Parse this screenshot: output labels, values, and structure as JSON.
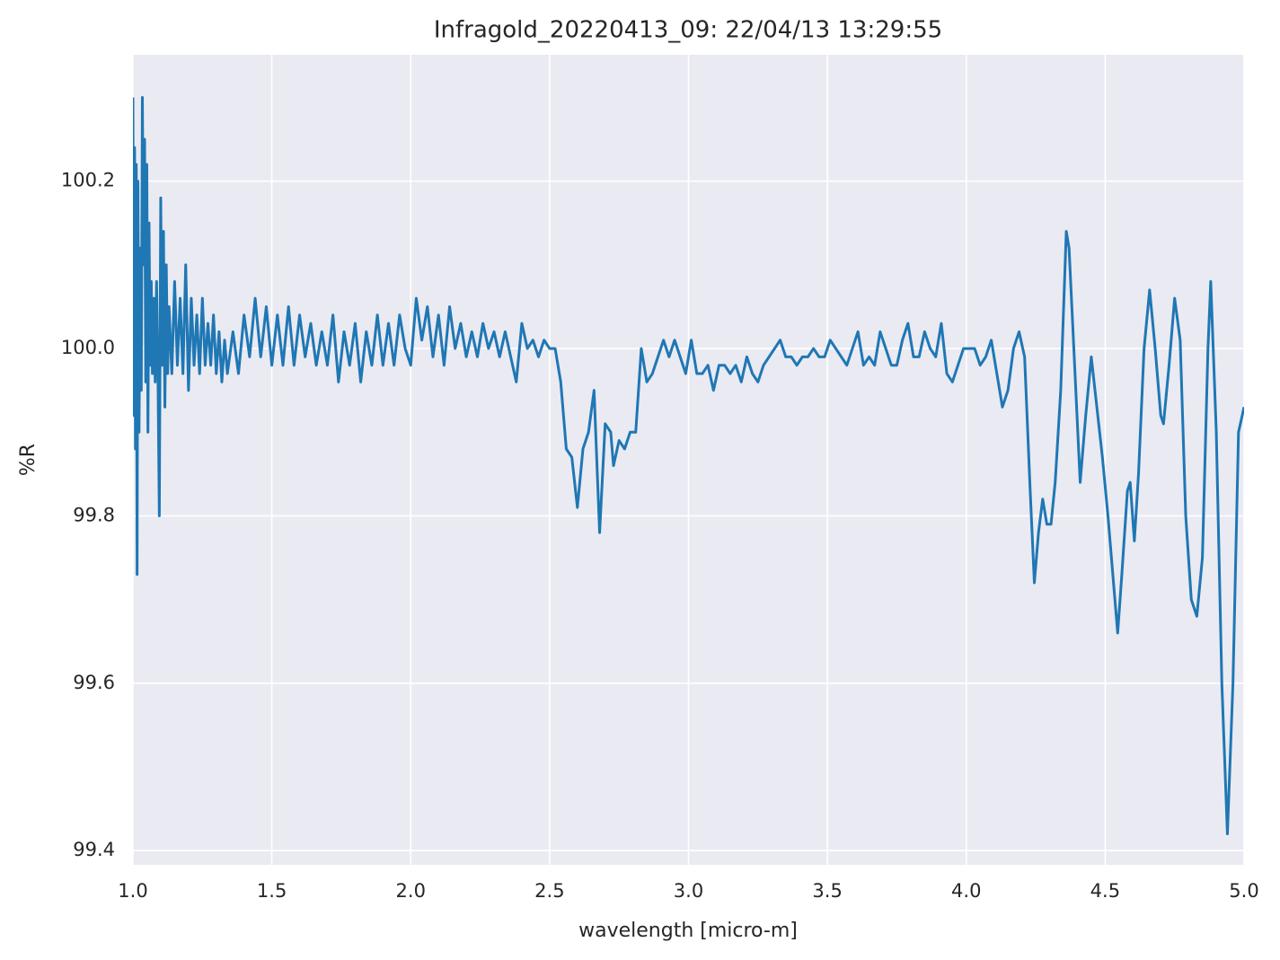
{
  "chart_data": {
    "type": "line",
    "title": "Infragold_20220413_09:  22/04/13 13:29:55",
    "x_label": "wavelength [micro-m]",
    "y_label": "%R",
    "xlim": [
      1.0,
      5.0
    ],
    "ylim": [
      99.383,
      100.351
    ],
    "xticks": [
      {
        "value": 1.0,
        "label": "1.0"
      },
      {
        "value": 1.5,
        "label": "1.5"
      },
      {
        "value": 2.0,
        "label": "2.0"
      },
      {
        "value": 2.5,
        "label": "2.5"
      },
      {
        "value": 3.0,
        "label": "3.0"
      },
      {
        "value": 3.5,
        "label": "3.5"
      },
      {
        "value": 4.0,
        "label": "4.0"
      },
      {
        "value": 4.5,
        "label": "4.5"
      },
      {
        "value": 5.0,
        "label": "5.0"
      }
    ],
    "yticks": [
      99.4,
      99.6,
      99.8,
      {
        "value": 100.0,
        "label": "100.0"
      },
      100.2
    ],
    "grid": true,
    "series": [
      {
        "color": "#1f77b4",
        "x": [
          1.0,
          1.003,
          1.006,
          1.009,
          1.012,
          1.015,
          1.018,
          1.022,
          1.026,
          1.03,
          1.034,
          1.038,
          1.042,
          1.046,
          1.05,
          1.054,
          1.058,
          1.062,
          1.066,
          1.07,
          1.075,
          1.08,
          1.085,
          1.09,
          1.095,
          1.1,
          1.105,
          1.11,
          1.115,
          1.12,
          1.125,
          1.13,
          1.14,
          1.15,
          1.16,
          1.17,
          1.18,
          1.19,
          1.2,
          1.21,
          1.22,
          1.23,
          1.24,
          1.25,
          1.26,
          1.27,
          1.28,
          1.29,
          1.3,
          1.31,
          1.32,
          1.33,
          1.34,
          1.36,
          1.38,
          1.4,
          1.42,
          1.44,
          1.46,
          1.48,
          1.5,
          1.52,
          1.54,
          1.56,
          1.58,
          1.6,
          1.62,
          1.64,
          1.66,
          1.68,
          1.7,
          1.72,
          1.74,
          1.76,
          1.78,
          1.8,
          1.82,
          1.84,
          1.86,
          1.88,
          1.9,
          1.92,
          1.94,
          1.96,
          1.98,
          2.0,
          2.02,
          2.04,
          2.06,
          2.08,
          2.1,
          2.12,
          2.14,
          2.16,
          2.18,
          2.2,
          2.22,
          2.24,
          2.26,
          2.28,
          2.3,
          2.32,
          2.34,
          2.36,
          2.38,
          2.4,
          2.42,
          2.44,
          2.46,
          2.48,
          2.5,
          2.52,
          2.54,
          2.56,
          2.58,
          2.6,
          2.62,
          2.64,
          2.66,
          2.68,
          2.7,
          2.72,
          2.73,
          2.75,
          2.77,
          2.79,
          2.81,
          2.83,
          2.85,
          2.87,
          2.89,
          2.91,
          2.93,
          2.95,
          2.97,
          2.99,
          3.01,
          3.03,
          3.05,
          3.07,
          3.09,
          3.11,
          3.13,
          3.15,
          3.17,
          3.19,
          3.21,
          3.23,
          3.25,
          3.27,
          3.29,
          3.31,
          3.33,
          3.35,
          3.37,
          3.39,
          3.41,
          3.43,
          3.45,
          3.47,
          3.49,
          3.51,
          3.53,
          3.55,
          3.57,
          3.59,
          3.61,
          3.63,
          3.65,
          3.67,
          3.69,
          3.71,
          3.73,
          3.75,
          3.77,
          3.79,
          3.81,
          3.83,
          3.85,
          3.87,
          3.89,
          3.91,
          3.93,
          3.95,
          3.97,
          3.99,
          4.01,
          4.03,
          4.05,
          4.07,
          4.09,
          4.11,
          4.13,
          4.15,
          4.17,
          4.19,
          4.21,
          4.23,
          4.245,
          4.26,
          4.275,
          4.29,
          4.305,
          4.32,
          4.34,
          4.36,
          4.37,
          4.39,
          4.41,
          4.43,
          4.45,
          4.47,
          4.49,
          4.51,
          4.53,
          4.545,
          4.56,
          4.58,
          4.59,
          4.605,
          4.62,
          4.64,
          4.66,
          4.68,
          4.7,
          4.71,
          4.73,
          4.75,
          4.77,
          4.79,
          4.81,
          4.83,
          4.85,
          4.87,
          4.88,
          4.9,
          4.92,
          4.94,
          4.96,
          4.98,
          5.0
        ],
        "values": [
          100.3,
          99.92,
          100.24,
          99.88,
          100.22,
          99.73,
          100.2,
          99.9,
          100.12,
          99.95,
          100.3,
          100.1,
          100.25,
          99.96,
          100.22,
          99.9,
          100.15,
          99.98,
          100.08,
          99.97,
          100.06,
          99.96,
          100.08,
          99.97,
          99.8,
          100.18,
          99.98,
          100.14,
          99.93,
          100.1,
          99.97,
          100.05,
          99.97,
          100.08,
          99.98,
          100.06,
          99.97,
          100.1,
          99.95,
          100.06,
          99.98,
          100.04,
          99.97,
          100.06,
          99.98,
          100.03,
          99.98,
          100.04,
          99.97,
          100.02,
          99.96,
          100.01,
          99.97,
          100.02,
          99.97,
          100.04,
          99.99,
          100.06,
          99.99,
          100.05,
          99.98,
          100.04,
          99.98,
          100.05,
          99.98,
          100.04,
          99.99,
          100.03,
          99.98,
          100.02,
          99.98,
          100.04,
          99.96,
          100.02,
          99.98,
          100.03,
          99.96,
          100.02,
          99.98,
          100.04,
          99.98,
          100.03,
          99.98,
          100.04,
          100.0,
          99.98,
          100.06,
          100.01,
          100.05,
          99.99,
          100.04,
          99.98,
          100.05,
          100.0,
          100.03,
          99.99,
          100.02,
          99.99,
          100.03,
          100.0,
          100.02,
          99.99,
          100.02,
          99.99,
          99.96,
          100.03,
          100.0,
          100.01,
          99.99,
          100.01,
          100.0,
          100.0,
          99.96,
          99.88,
          99.87,
          99.81,
          99.88,
          99.9,
          99.95,
          99.78,
          99.91,
          99.9,
          99.86,
          99.89,
          99.88,
          99.9,
          99.9,
          100.0,
          99.96,
          99.97,
          99.99,
          100.01,
          99.99,
          100.01,
          99.99,
          99.97,
          100.01,
          99.97,
          99.97,
          99.98,
          99.95,
          99.98,
          99.98,
          99.97,
          99.98,
          99.96,
          99.99,
          99.97,
          99.96,
          99.98,
          99.99,
          100.0,
          100.01,
          99.99,
          99.99,
          99.98,
          99.99,
          99.99,
          100.0,
          99.99,
          99.99,
          100.01,
          100.0,
          99.99,
          99.98,
          100.0,
          100.02,
          99.98,
          99.99,
          99.98,
          100.02,
          100.0,
          99.98,
          99.98,
          100.01,
          100.03,
          99.99,
          99.99,
          100.02,
          100.0,
          99.99,
          100.03,
          99.97,
          99.96,
          99.98,
          100.0,
          100.0,
          100.0,
          99.98,
          99.99,
          100.01,
          99.97,
          99.93,
          99.95,
          100.0,
          100.02,
          99.99,
          99.83,
          99.72,
          99.78,
          99.82,
          99.79,
          99.79,
          99.84,
          99.95,
          100.14,
          100.12,
          99.98,
          99.84,
          99.92,
          99.99,
          99.93,
          99.87,
          99.8,
          99.72,
          99.66,
          99.73,
          99.83,
          99.84,
          99.77,
          99.85,
          100.0,
          100.07,
          100.0,
          99.92,
          99.91,
          99.98,
          100.06,
          100.01,
          99.8,
          99.7,
          99.68,
          99.75,
          100.0,
          100.08,
          99.9,
          99.6,
          99.42,
          99.6,
          99.9,
          99.93
        ]
      }
    ]
  }
}
